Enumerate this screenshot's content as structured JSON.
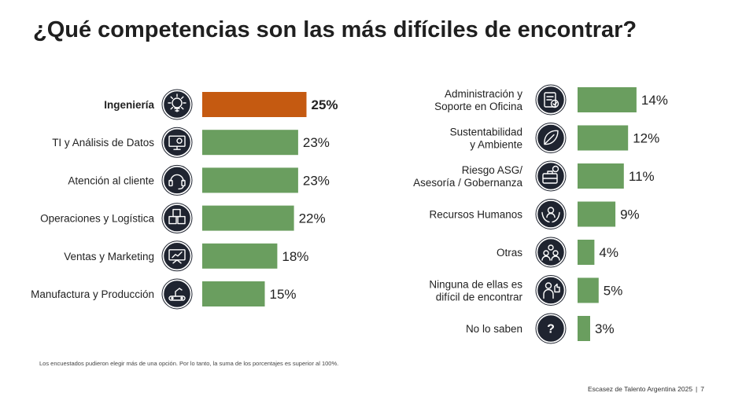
{
  "title": "¿Qué competencias son las más difíciles de encontrar?",
  "colors": {
    "highlight": "#C55A11",
    "bar": "#6A9E5F",
    "icon": "#1f2430"
  },
  "chart_data": [
    {
      "type": "bar",
      "orientation": "horizontal",
      "title": "",
      "unit": "%",
      "xlim": [
        0,
        25
      ],
      "categories": [
        {
          "label": [
            "Ingeniería"
          ],
          "value": 25,
          "highlight": true,
          "icon": "lightbulb-gear-icon"
        },
        {
          "label": [
            "TI y Análisis de Datos"
          ],
          "value": 23,
          "highlight": false,
          "icon": "monitor-gear-icon"
        },
        {
          "label": [
            "Atención al cliente"
          ],
          "value": 23,
          "highlight": false,
          "icon": "headset-icon"
        },
        {
          "label": [
            "Operaciones y Logística"
          ],
          "value": 22,
          "highlight": false,
          "icon": "boxes-icon"
        },
        {
          "label": [
            "Ventas y Marketing"
          ],
          "value": 18,
          "highlight": false,
          "icon": "presentation-chart-icon"
        },
        {
          "label": [
            "Manufactura y Producción"
          ],
          "value": 15,
          "highlight": false,
          "icon": "conveyor-robot-icon"
        }
      ]
    },
    {
      "type": "bar",
      "orientation": "horizontal",
      "title": "",
      "unit": "%",
      "xlim": [
        0,
        25
      ],
      "categories": [
        {
          "label": [
            "Administración y",
            "Soporte en Oficina"
          ],
          "value": 14,
          "highlight": false,
          "icon": "clipboard-check-icon"
        },
        {
          "label": [
            "Sustentabilidad",
            "y Ambiente"
          ],
          "value": 12,
          "highlight": false,
          "icon": "leaf-icon"
        },
        {
          "label": [
            "Riesgo ASG/",
            "Asesoría / Gobernanza"
          ],
          "value": 11,
          "highlight": false,
          "icon": "briefcase-icon"
        },
        {
          "label": [
            "Recursos Humanos"
          ],
          "value": 9,
          "highlight": false,
          "icon": "people-hands-icon"
        },
        {
          "label": [
            "Otras"
          ],
          "value": 4,
          "highlight": false,
          "icon": "group-icon"
        },
        {
          "label": [
            "Ninguna de ellas es",
            "difícil de encontrar"
          ],
          "value": 5,
          "highlight": false,
          "icon": "person-thumbs-up-icon"
        },
        {
          "label": [
            "No lo saben"
          ],
          "value": 3,
          "highlight": false,
          "icon": "question-icon"
        }
      ]
    }
  ],
  "note": "Los encuestados pudieron elegir más de una opción. Por lo tanto, la suma de los porcentajes es superior al 100%.",
  "footer": {
    "source": "Escasez de Talento Argentina 2025",
    "separator": "|",
    "page": "7"
  }
}
